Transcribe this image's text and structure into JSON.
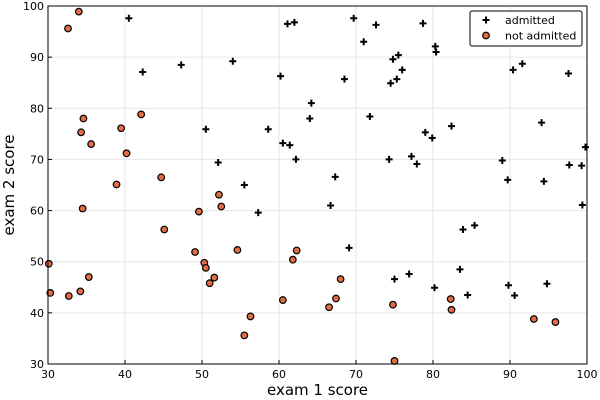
{
  "chart_data": {
    "type": "scatter",
    "title": "",
    "xlabel": "exam 1 score",
    "ylabel": "exam 2 score",
    "xlim": [
      30,
      100
    ],
    "ylim": [
      30,
      100
    ],
    "xticks": [
      30,
      40,
      50,
      60,
      70,
      80,
      90,
      100
    ],
    "yticks": [
      30,
      40,
      50,
      60,
      70,
      80,
      90,
      100
    ],
    "grid": true,
    "legend_position": "top-right",
    "series": [
      {
        "name": "admitted",
        "marker": "plus",
        "color": "#000000",
        "points": [
          [
            40.5,
            97.6
          ],
          [
            42.3,
            87.1
          ],
          [
            47.3,
            88.5
          ],
          [
            50.5,
            75.9
          ],
          [
            52.1,
            69.4
          ],
          [
            54.0,
            89.2
          ],
          [
            55.5,
            65.0
          ],
          [
            57.3,
            59.6
          ],
          [
            58.6,
            75.9
          ],
          [
            60.2,
            86.3
          ],
          [
            60.5,
            73.2
          ],
          [
            61.1,
            96.5
          ],
          [
            61.4,
            72.8
          ],
          [
            62.0,
            96.8
          ],
          [
            62.2,
            70.0
          ],
          [
            64.0,
            78.0
          ],
          [
            64.2,
            81.0
          ],
          [
            66.7,
            61.0
          ],
          [
            67.3,
            66.6
          ],
          [
            68.5,
            85.7
          ],
          [
            69.1,
            52.7
          ],
          [
            69.7,
            97.6
          ],
          [
            71.0,
            93.0
          ],
          [
            71.8,
            78.4
          ],
          [
            72.6,
            96.3
          ],
          [
            74.3,
            70.0
          ],
          [
            74.5,
            84.9
          ],
          [
            74.8,
            89.6
          ],
          [
            75.0,
            46.6
          ],
          [
            75.3,
            85.7
          ],
          [
            75.5,
            90.4
          ],
          [
            76.0,
            87.5
          ],
          [
            76.9,
            47.6
          ],
          [
            77.2,
            70.6
          ],
          [
            77.9,
            69.1
          ],
          [
            78.7,
            96.6
          ],
          [
            79.0,
            75.3
          ],
          [
            79.9,
            74.2
          ],
          [
            80.2,
            44.9
          ],
          [
            80.3,
            92.1
          ],
          [
            80.4,
            91.0
          ],
          [
            82.4,
            76.5
          ],
          [
            83.5,
            48.5
          ],
          [
            83.9,
            56.3
          ],
          [
            84.5,
            43.5
          ],
          [
            85.4,
            57.1
          ],
          [
            89.0,
            69.8
          ],
          [
            89.7,
            66.0
          ],
          [
            89.8,
            45.4
          ],
          [
            90.4,
            87.5
          ],
          [
            90.6,
            43.4
          ],
          [
            91.6,
            88.7
          ],
          [
            94.1,
            77.2
          ],
          [
            94.4,
            65.7
          ],
          [
            94.8,
            45.7
          ],
          [
            97.6,
            86.8
          ],
          [
            97.7,
            68.9
          ],
          [
            99.3,
            68.8
          ],
          [
            99.4,
            61.1
          ],
          [
            99.8,
            72.4
          ]
        ]
      },
      {
        "name": "not admitted",
        "marker": "circle",
        "color": "#e26d45",
        "points": [
          [
            30.1,
            49.6
          ],
          [
            30.3,
            43.9
          ],
          [
            32.6,
            95.6
          ],
          [
            32.7,
            43.3
          ],
          [
            34.0,
            98.9
          ],
          [
            34.2,
            44.2
          ],
          [
            34.3,
            75.3
          ],
          [
            34.5,
            60.4
          ],
          [
            34.6,
            78.0
          ],
          [
            35.3,
            47.0
          ],
          [
            35.6,
            73.0
          ],
          [
            38.9,
            65.1
          ],
          [
            39.5,
            76.1
          ],
          [
            40.2,
            71.2
          ],
          [
            42.1,
            78.8
          ],
          [
            44.7,
            66.5
          ],
          [
            45.1,
            56.3
          ],
          [
            49.1,
            51.9
          ],
          [
            49.6,
            59.8
          ],
          [
            50.3,
            49.8
          ],
          [
            50.5,
            48.8
          ],
          [
            51.0,
            45.8
          ],
          [
            51.6,
            46.9
          ],
          [
            52.2,
            63.1
          ],
          [
            52.5,
            60.8
          ],
          [
            54.6,
            52.3
          ],
          [
            55.5,
            35.6
          ],
          [
            56.3,
            39.3
          ],
          [
            60.5,
            42.5
          ],
          [
            61.8,
            50.4
          ],
          [
            62.3,
            52.2
          ],
          [
            66.5,
            41.1
          ],
          [
            67.4,
            42.8
          ],
          [
            68.0,
            46.6
          ],
          [
            74.8,
            41.6
          ],
          [
            75.0,
            30.6
          ],
          [
            82.3,
            42.7
          ],
          [
            82.4,
            40.6
          ],
          [
            93.1,
            38.8
          ],
          [
            95.9,
            38.2
          ]
        ]
      }
    ]
  }
}
